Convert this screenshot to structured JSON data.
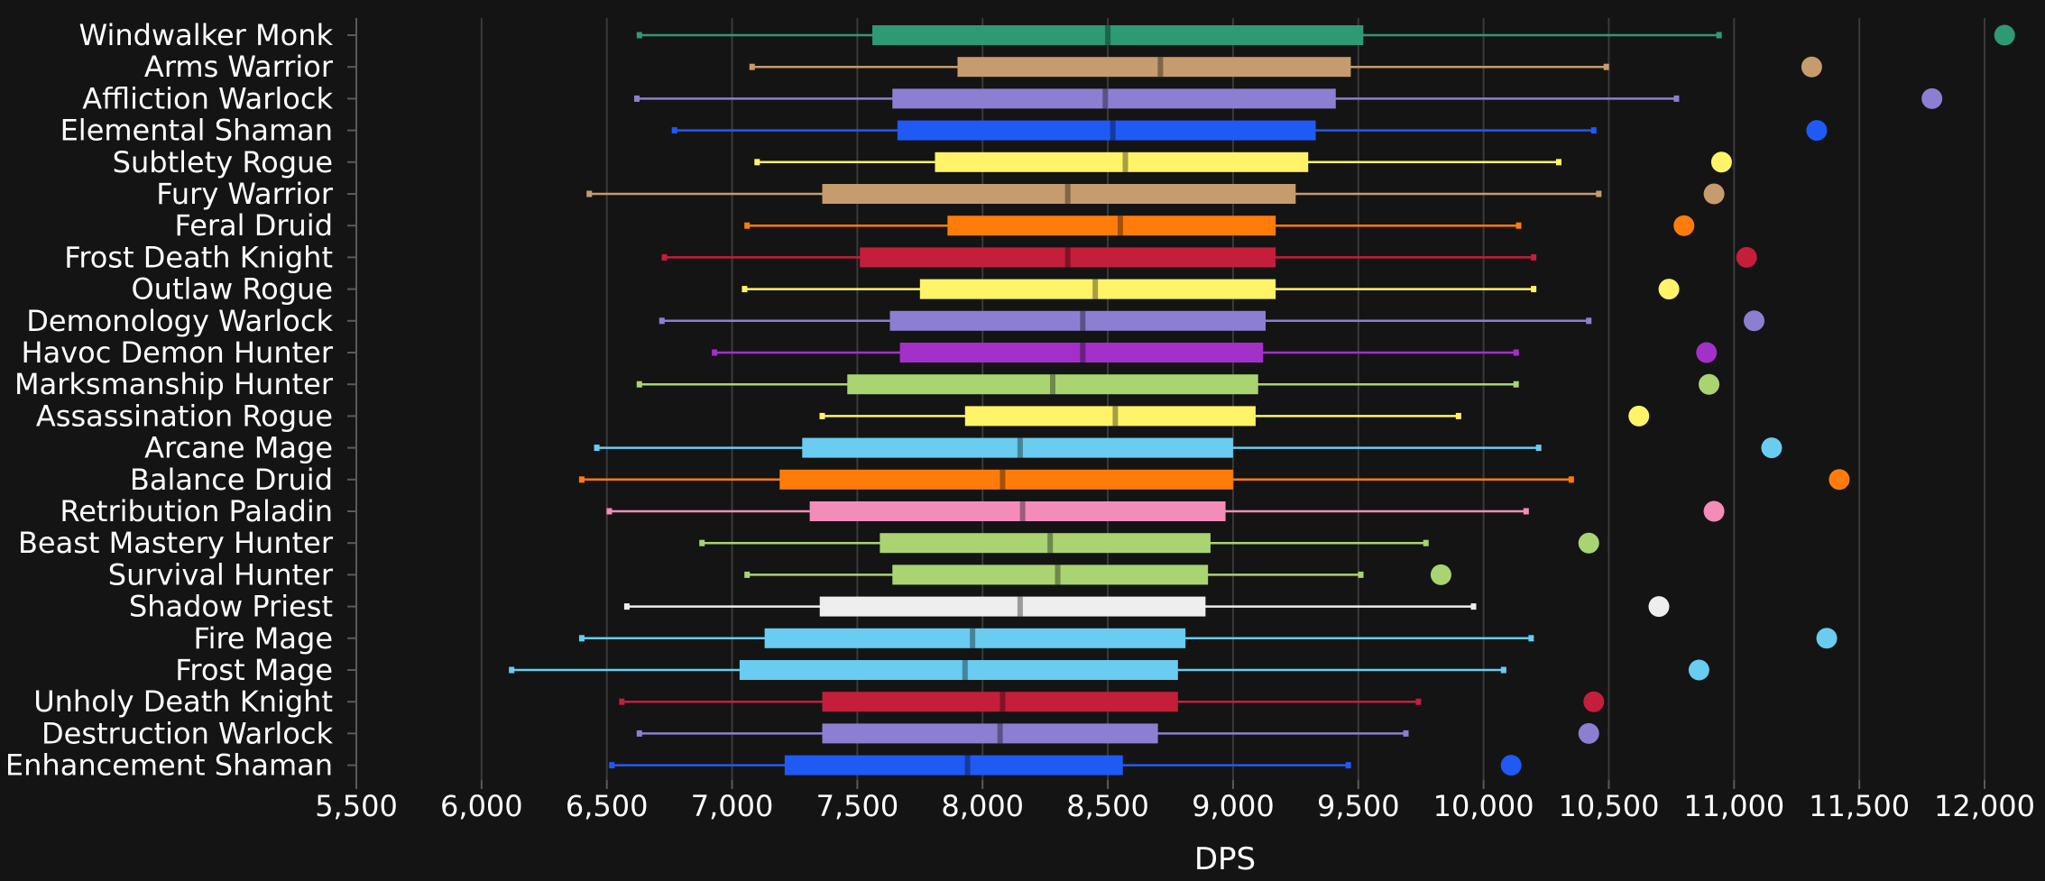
{
  "chart_data": {
    "type": "box",
    "title": "",
    "xlabel": "DPS",
    "ylabel": "",
    "xlim": [
      5500,
      12000
    ],
    "x_ticks": [
      5500,
      6000,
      6500,
      7000,
      7500,
      8000,
      8500,
      9000,
      9500,
      10000,
      10500,
      11000,
      11500,
      12000
    ],
    "x_tick_labels": [
      "5,500",
      "6,000",
      "6,500",
      "7,000",
      "7,500",
      "8,000",
      "8,500",
      "9,000",
      "9,500",
      "10,000",
      "10,500",
      "11,000",
      "11,500",
      "12,000"
    ],
    "grid": "vertical",
    "series": [
      {
        "label": "Windwalker Monk",
        "color": "#2e9a74",
        "min": 6630,
        "q1": 7560,
        "median": 8500,
        "q3": 9520,
        "max": 10940,
        "outlier": 12080
      },
      {
        "label": "Arms Warrior",
        "color": "#c69b6d",
        "min": 7080,
        "q1": 7900,
        "median": 8710,
        "q3": 9470,
        "max": 10490,
        "outlier": 11310
      },
      {
        "label": "Affliction Warlock",
        "color": "#8c7fd1",
        "min": 6620,
        "q1": 7640,
        "median": 8490,
        "q3": 9410,
        "max": 10770,
        "outlier": 11790
      },
      {
        "label": "Elemental Shaman",
        "color": "#1f5af5",
        "min": 6770,
        "q1": 7660,
        "median": 8520,
        "q3": 9330,
        "max": 10440,
        "outlier": 11330
      },
      {
        "label": "Subtlety Rogue",
        "color": "#fff468",
        "min": 7100,
        "q1": 7810,
        "median": 8570,
        "q3": 9300,
        "max": 10300,
        "outlier": 10950
      },
      {
        "label": "Fury Warrior",
        "color": "#c69b6d",
        "min": 6430,
        "q1": 7360,
        "median": 8340,
        "q3": 9250,
        "max": 10460,
        "outlier": 10920
      },
      {
        "label": "Feral Druid",
        "color": "#ff7c0a",
        "min": 7060,
        "q1": 7860,
        "median": 8550,
        "q3": 9170,
        "max": 10140,
        "outlier": 10800
      },
      {
        "label": "Frost Death Knight",
        "color": "#c41e3a",
        "min": 6730,
        "q1": 7510,
        "median": 8340,
        "q3": 9170,
        "max": 10200,
        "outlier": 11050
      },
      {
        "label": "Outlaw Rogue",
        "color": "#fff468",
        "min": 7050,
        "q1": 7750,
        "median": 8450,
        "q3": 9170,
        "max": 10200,
        "outlier": 10740
      },
      {
        "label": "Demonology Warlock",
        "color": "#8c7fd1",
        "min": 6720,
        "q1": 7630,
        "median": 8400,
        "q3": 9130,
        "max": 10420,
        "outlier": 11080
      },
      {
        "label": "Havoc Demon Hunter",
        "color": "#a330c9",
        "min": 6930,
        "q1": 7670,
        "median": 8400,
        "q3": 9120,
        "max": 10130,
        "outlier": 10890
      },
      {
        "label": "Marksmanship Hunter",
        "color": "#aad372",
        "min": 6630,
        "q1": 7460,
        "median": 8280,
        "q3": 9100,
        "max": 10130,
        "outlier": 10900
      },
      {
        "label": "Assassination Rogue",
        "color": "#fff468",
        "min": 7360,
        "q1": 7930,
        "median": 8530,
        "q3": 9090,
        "max": 9900,
        "outlier": 10620
      },
      {
        "label": "Arcane Mage",
        "color": "#69ccf0",
        "min": 6460,
        "q1": 7280,
        "median": 8150,
        "q3": 9000,
        "max": 10220,
        "outlier": 11150
      },
      {
        "label": "Balance Druid",
        "color": "#ff7c0a",
        "min": 6400,
        "q1": 7190,
        "median": 8080,
        "q3": 9000,
        "max": 10350,
        "outlier": 11420
      },
      {
        "label": "Retribution Paladin",
        "color": "#f48cba",
        "min": 6510,
        "q1": 7310,
        "median": 8160,
        "q3": 8970,
        "max": 10170,
        "outlier": 10920
      },
      {
        "label": "Beast Mastery Hunter",
        "color": "#aad372",
        "min": 6880,
        "q1": 7590,
        "median": 8270,
        "q3": 8910,
        "max": 9770,
        "outlier": 10420
      },
      {
        "label": "Survival Hunter",
        "color": "#aad372",
        "min": 7060,
        "q1": 7640,
        "median": 8300,
        "q3": 8900,
        "max": 9510,
        "outlier": 9830
      },
      {
        "label": "Shadow Priest",
        "color": "#eeeeee",
        "min": 6580,
        "q1": 7350,
        "median": 8150,
        "q3": 8890,
        "max": 9960,
        "outlier": 10700
      },
      {
        "label": "Fire Mage",
        "color": "#69ccf0",
        "min": 6400,
        "q1": 7130,
        "median": 7960,
        "q3": 8810,
        "max": 10190,
        "outlier": 11370
      },
      {
        "label": "Frost Mage",
        "color": "#69ccf0",
        "min": 6120,
        "q1": 7030,
        "median": 7930,
        "q3": 8780,
        "max": 10080,
        "outlier": 10860
      },
      {
        "label": "Unholy Death Knight",
        "color": "#c41e3a",
        "min": 6560,
        "q1": 7360,
        "median": 8080,
        "q3": 8780,
        "max": 9740,
        "outlier": 10440
      },
      {
        "label": "Destruction Warlock",
        "color": "#8c7fd1",
        "min": 6630,
        "q1": 7360,
        "median": 8070,
        "q3": 8700,
        "max": 9690,
        "outlier": 10420
      },
      {
        "label": "Enhancement Shaman",
        "color": "#1f5af5",
        "min": 6520,
        "q1": 7210,
        "median": 7940,
        "q3": 8560,
        "max": 9460,
        "outlier": 10110
      }
    ]
  }
}
